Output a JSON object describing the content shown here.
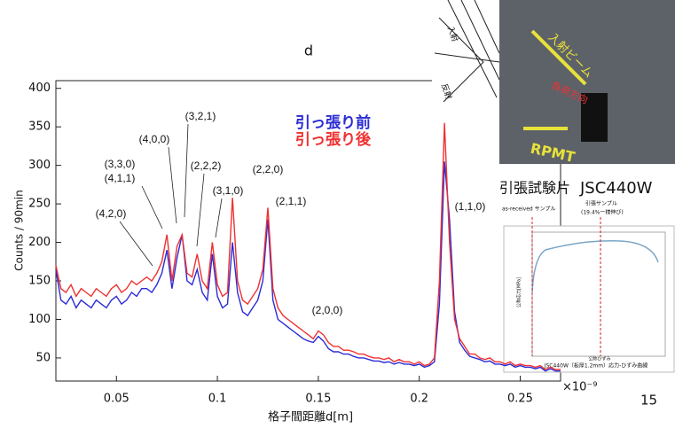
{
  "chart_data": {
    "type": "line",
    "title": "d",
    "x_label": "格子間距離d[m]",
    "y_label": "Counts / 90min",
    "x_exponent": "×10⁻⁹",
    "xlim": [
      0.02,
      0.27
    ],
    "ylim": [
      20,
      410
    ],
    "xticks": [
      0.05,
      0.1,
      0.15,
      0.2,
      0.25
    ],
    "yticks": [
      50,
      100,
      150,
      200,
      250,
      300,
      350,
      400
    ],
    "x": [
      0.02,
      0.0225,
      0.025,
      0.0275,
      0.03,
      0.0325,
      0.035,
      0.0375,
      0.04,
      0.0425,
      0.045,
      0.0475,
      0.05,
      0.0525,
      0.055,
      0.0575,
      0.06,
      0.0625,
      0.065,
      0.0675,
      0.07,
      0.0725,
      0.075,
      0.0775,
      0.08,
      0.0825,
      0.085,
      0.0875,
      0.09,
      0.0925,
      0.095,
      0.0975,
      0.1,
      0.1025,
      0.105,
      0.1075,
      0.11,
      0.1125,
      0.115,
      0.1175,
      0.12,
      0.1225,
      0.125,
      0.1275,
      0.13,
      0.1325,
      0.135,
      0.1375,
      0.14,
      0.1425,
      0.145,
      0.1475,
      0.15,
      0.1525,
      0.155,
      0.1575,
      0.16,
      0.1625,
      0.165,
      0.1675,
      0.17,
      0.1725,
      0.175,
      0.1775,
      0.18,
      0.1825,
      0.185,
      0.1875,
      0.19,
      0.1925,
      0.195,
      0.1975,
      0.2,
      0.2025,
      0.205,
      0.2075,
      0.21,
      0.2125,
      0.215,
      0.2175,
      0.22,
      0.2225,
      0.225,
      0.2275,
      0.23,
      0.2325,
      0.235,
      0.2375,
      0.24,
      0.2425,
      0.245,
      0.2475,
      0.25,
      0.2525,
      0.255,
      0.2575,
      0.26,
      0.2625,
      0.265,
      0.2675,
      0.27
    ],
    "series": [
      {
        "name": "引っ張り前",
        "color": "#2b2bd6",
        "values": [
          165,
          125,
          120,
          130,
          115,
          125,
          120,
          115,
          125,
          120,
          115,
          125,
          130,
          120,
          125,
          135,
          130,
          140,
          140,
          135,
          145,
          160,
          190,
          140,
          180,
          210,
          150,
          145,
          165,
          135,
          125,
          185,
          130,
          115,
          120,
          200,
          135,
          110,
          105,
          115,
          125,
          150,
          230,
          125,
          100,
          95,
          90,
          85,
          80,
          75,
          72,
          70,
          78,
          72,
          62,
          58,
          58,
          55,
          55,
          52,
          50,
          50,
          48,
          46,
          46,
          44,
          45,
          42,
          44,
          42,
          42,
          40,
          42,
          38,
          40,
          45,
          120,
          305,
          230,
          110,
          70,
          60,
          52,
          50,
          48,
          45,
          46,
          42,
          42,
          40,
          42,
          38,
          40,
          38,
          38,
          36,
          38,
          33,
          36,
          33,
          33
        ]
      },
      {
        "name": "引っ張り後",
        "color": "#f03030",
        "values": [
          170,
          140,
          135,
          145,
          130,
          140,
          135,
          130,
          140,
          135,
          130,
          140,
          145,
          135,
          140,
          150,
          145,
          150,
          155,
          150,
          160,
          175,
          210,
          150,
          195,
          210,
          160,
          155,
          185,
          150,
          140,
          200,
          145,
          130,
          135,
          258,
          150,
          125,
          120,
          130,
          140,
          165,
          245,
          140,
          115,
          105,
          100,
          95,
          90,
          85,
          80,
          75,
          85,
          80,
          70,
          65,
          65,
          60,
          60,
          58,
          55,
          55,
          52,
          50,
          50,
          48,
          50,
          45,
          48,
          45,
          45,
          42,
          45,
          40,
          42,
          50,
          150,
          355,
          200,
          100,
          75,
          65,
          55,
          55,
          50,
          48,
          50,
          45,
          45,
          42,
          45,
          40,
          42,
          40,
          40,
          38,
          40,
          35,
          38,
          35,
          35
        ]
      }
    ],
    "annotations": [
      "(4,2,0)",
      "(3,3,0)",
      "(4,1,1)",
      "(4,0,0)",
      "(3,2,1)",
      "(2,2,2)",
      "(3,1,0)",
      "(2,2,0)",
      "(2,1,1)",
      "(2,0,0)",
      "(1,1,0)"
    ]
  },
  "insets": {
    "incident": "入射",
    "reflected": "反射",
    "beam": "入射ビーム",
    "load": "負荷方向",
    "detector": "RPMT",
    "specimen": "引張試験片",
    "steel": "JSC440W",
    "sample_a": "as-received サンプル",
    "sample_b": "引張サンプル",
    "sample_b_note": "(19.4%一様伸び)",
    "curve_caption": "JSC440W（板厚1.2mm）応力-ひずみ曲線",
    "strain": "公称ひずみ",
    "stress": "公称応力[MPa]"
  },
  "page_number": "15"
}
